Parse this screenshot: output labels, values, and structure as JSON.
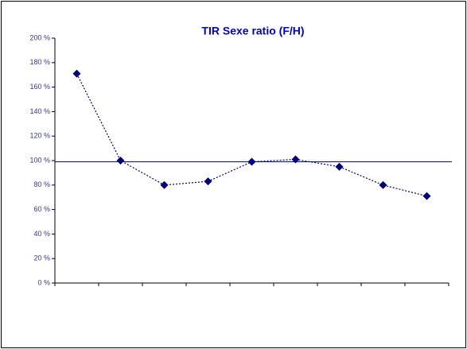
{
  "chart_data": {
    "type": "line",
    "title": "TIR Sexe ratio  (F/H)",
    "categories": [
      null,
      null,
      null,
      null,
      null,
      null,
      null,
      null,
      null
    ],
    "series": [
      {
        "color": "#000080",
        "values": [
          171,
          100,
          80,
          83,
          99,
          101,
          95,
          80,
          71
        ]
      }
    ],
    "reference_line": {
      "value": 99,
      "color": "#0000cc"
    },
    "ylim": [
      0,
      200
    ],
    "yticks": [
      {
        "value": 0,
        "label": "0 %"
      },
      {
        "value": 20,
        "label": "20 %"
      },
      {
        "value": 40,
        "label": "40 %"
      },
      {
        "value": 60,
        "label": "60 %"
      },
      {
        "value": 80,
        "label": "80 %"
      },
      {
        "value": 100,
        "label": "100 %"
      },
      {
        "value": 120,
        "label": "120 %"
      },
      {
        "value": 140,
        "label": "140 %"
      },
      {
        "value": 160,
        "label": "160 %"
      },
      {
        "value": 180,
        "label": "180 %"
      },
      {
        "value": 200,
        "label": "200 %"
      }
    ],
    "grid": false
  }
}
